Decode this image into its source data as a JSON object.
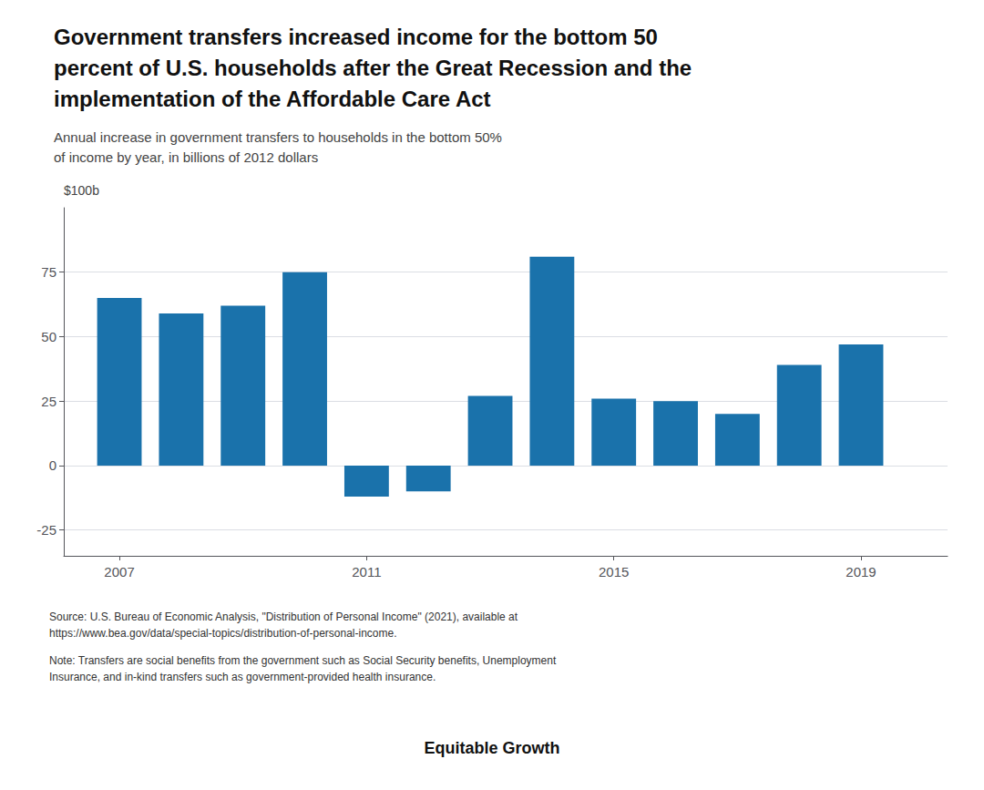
{
  "chart_data": {
    "type": "bar",
    "title": "Government transfers increased income for the bottom 50\npercent of U.S. households after the Great Recession and the\nimplementation of the Affordable Care Act",
    "subtitle": "Annual increase in government transfers to households in the bottom 50%\nof income by year, in billions of 2012 dollars",
    "ylabel": "$100b",
    "x": [
      2007,
      2008,
      2009,
      2010,
      2011,
      2012,
      2013,
      2014,
      2015,
      2016,
      2017,
      2018,
      2019
    ],
    "values": [
      65,
      59,
      62,
      75,
      -12,
      -10,
      27,
      81,
      26,
      25,
      20,
      39,
      47
    ],
    "color": "#1a72ab",
    "xlim": [
      2006.1,
      2020.4
    ],
    "xticks": [
      2007,
      2011,
      2015,
      2019
    ],
    "ylim": [
      -35,
      100
    ],
    "yticks": [
      -25,
      0,
      25,
      50,
      75
    ],
    "grid": true,
    "annotations": [
      "Source: U.S. Bureau of Economic Analysis, \"Distribution of Personal Income\" (2021), available at\nhttps://www.bea.gov/data/special-topics/distribution-of-personal-income.",
      "Note: Transfers are social benefits from the government such as Social Security benefits, Unemployment\nInsurance, and in-kind transfers such as government-provided health insurance.",
      "Equitable Growth"
    ]
  }
}
